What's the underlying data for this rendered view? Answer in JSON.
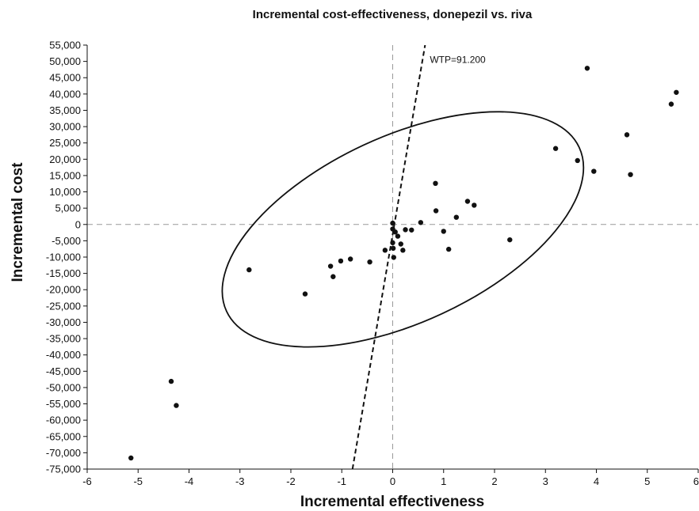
{
  "chart_data": {
    "type": "scatter",
    "title": "Incremental cost-effectiveness, donepezil vs. riva",
    "xlabel": "Incremental effectiveness",
    "ylabel": "Incremental cost",
    "xlim": [
      -6,
      6
    ],
    "ylim": [
      -75000,
      55000
    ],
    "x_ticks": [
      -6,
      -5,
      -4,
      -3,
      -2,
      -1,
      0,
      1,
      2,
      3,
      4,
      5,
      6
    ],
    "x_tick_labels": [
      "-6",
      "-5",
      "-4",
      "-3",
      "-2",
      "-1",
      "0",
      "1",
      "2",
      "3",
      "4",
      "5",
      "6"
    ],
    "y_ticks": [
      55000,
      50000,
      45000,
      40000,
      35000,
      30000,
      25000,
      20000,
      15000,
      10000,
      5000,
      0,
      -5000,
      -10000,
      -15000,
      -20000,
      -25000,
      -30000,
      -35000,
      -40000,
      -45000,
      -50000,
      -55000,
      -60000,
      -65000,
      -70000,
      -75000
    ],
    "y_tick_labels": [
      "55,000",
      "50,000",
      "45,000",
      "40,000",
      "35,000",
      "30,000",
      "25,000",
      "20,000",
      "15,000",
      "10,000",
      "5,000",
      "0",
      "-5,000",
      "-10,000",
      "-15,000",
      "-20,000",
      "-25,000",
      "-30,000",
      "-35,000",
      "-40,000",
      "-45,000",
      "-50,000",
      "-55,000",
      "-60,000",
      "-65,000",
      "-70,000",
      "-75,000"
    ],
    "wtp_label": "WTP=91.200",
    "wtp_line": {
      "slope": 91200,
      "intercept": -3000
    },
    "ellipse": {
      "cx": 0.2,
      "cy": -1500,
      "rx": 3.82,
      "ry": 28500,
      "rotate_deg": -25
    },
    "points": [
      [
        -5.14,
        -71600
      ],
      [
        -4.35,
        -48100
      ],
      [
        -4.25,
        -55500
      ],
      [
        -2.82,
        -13900
      ],
      [
        -1.72,
        -21300
      ],
      [
        -1.22,
        -12800
      ],
      [
        -1.17,
        -16000
      ],
      [
        -1.02,
        -11200
      ],
      [
        -0.83,
        -10600
      ],
      [
        -0.45,
        -11500
      ],
      [
        -0.15,
        -7900
      ],
      [
        0.0,
        400
      ],
      [
        0.0,
        -1400
      ],
      [
        0.0,
        -5600
      ],
      [
        0.01,
        -7300
      ],
      [
        0.02,
        -10100
      ],
      [
        0.05,
        -2300
      ],
      [
        0.1,
        -3600
      ],
      [
        0.16,
        -6000
      ],
      [
        0.2,
        -7900
      ],
      [
        0.25,
        -1600
      ],
      [
        0.37,
        -1700
      ],
      [
        0.55,
        600
      ],
      [
        0.84,
        12600
      ],
      [
        0.85,
        4200
      ],
      [
        1.0,
        -2100
      ],
      [
        1.1,
        -7600
      ],
      [
        1.25,
        2200
      ],
      [
        1.47,
        7100
      ],
      [
        1.6,
        5900
      ],
      [
        2.3,
        -4700
      ],
      [
        3.2,
        23300
      ],
      [
        3.63,
        19600
      ],
      [
        3.82,
        47900
      ],
      [
        3.95,
        16300
      ],
      [
        4.6,
        27500
      ],
      [
        4.67,
        15300
      ],
      [
        5.47,
        36900
      ],
      [
        5.57,
        40500
      ]
    ],
    "zero_lines": "dashed",
    "grid": false,
    "legend": "none"
  }
}
